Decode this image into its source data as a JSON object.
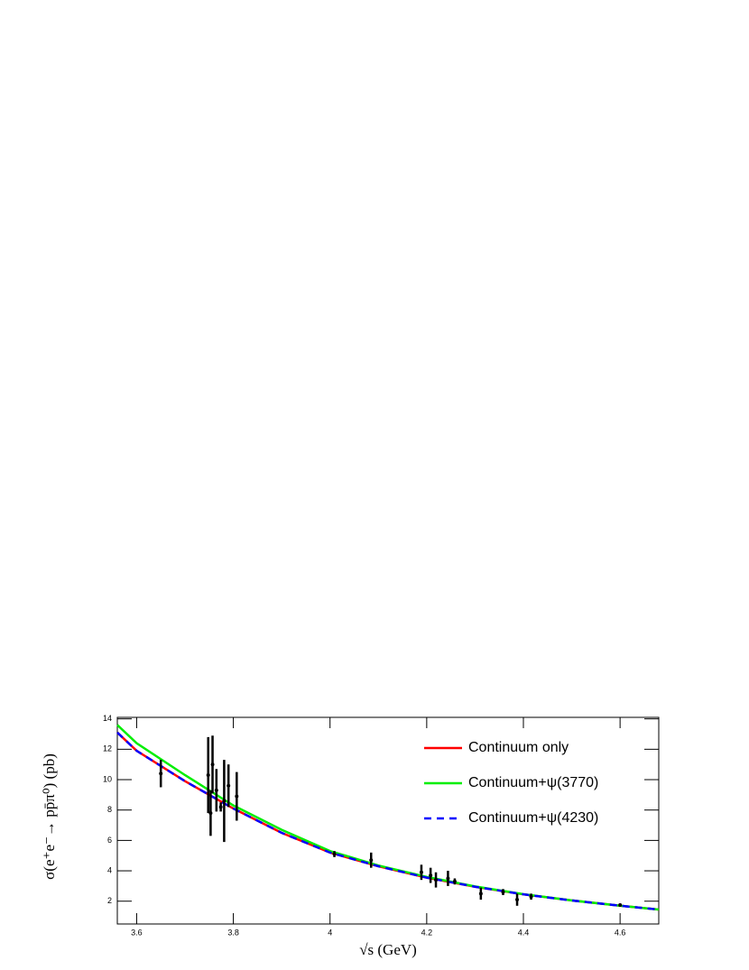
{
  "chart_data": {
    "type": "line",
    "xlabel": "√s (GeV)",
    "ylabel": "σ(e⁺e⁻→ pp̄π⁰) (pb)",
    "xlim": [
      3.56,
      4.68
    ],
    "ylim": [
      0.5,
      14.1
    ],
    "xticks": [
      3.6,
      3.8,
      4,
      4.2,
      4.4,
      4.6
    ],
    "yticks": [
      2,
      4,
      6,
      8,
      10,
      12,
      14
    ],
    "legend": "upper right",
    "series": [
      {
        "name": "Continuum only",
        "color": "#ff0000",
        "dashed": false,
        "x": [
          3.56,
          3.6,
          3.7,
          3.8,
          3.9,
          4.0,
          4.1,
          4.2,
          4.3,
          4.4,
          4.5,
          4.6,
          4.68
        ],
        "values": [
          13.1,
          11.9,
          9.9,
          8.1,
          6.5,
          5.2,
          4.3,
          3.55,
          2.95,
          2.45,
          2.05,
          1.7,
          1.45
        ]
      },
      {
        "name": "Continuum+ψ(3770)",
        "color": "#00ee00",
        "dashed": false,
        "x": [
          3.56,
          3.6,
          3.7,
          3.8,
          3.9,
          4.0,
          4.1,
          4.2,
          4.3,
          4.4,
          4.5,
          4.6,
          4.68
        ],
        "values": [
          13.6,
          12.4,
          10.3,
          8.3,
          6.7,
          5.3,
          4.35,
          3.6,
          2.97,
          2.46,
          2.05,
          1.7,
          1.45
        ]
      },
      {
        "name": "Continuum+ψ(4230)",
        "color": "#0000ff",
        "dashed": true,
        "x": [
          3.56,
          3.6,
          3.7,
          3.8,
          3.9,
          4.0,
          4.1,
          4.2,
          4.3,
          4.4,
          4.5,
          4.6,
          4.68
        ],
        "values": [
          13.1,
          11.9,
          9.9,
          8.1,
          6.5,
          5.2,
          4.3,
          3.55,
          2.95,
          2.45,
          2.05,
          1.7,
          1.45
        ]
      }
    ],
    "points": {
      "color": "#000000",
      "x": [
        3.65,
        3.748,
        3.753,
        3.757,
        3.765,
        3.774,
        3.781,
        3.79,
        3.807,
        4.009,
        4.085,
        4.189,
        4.208,
        4.219,
        4.244,
        4.258,
        4.312,
        4.358,
        4.387,
        4.416,
        4.6
      ],
      "values": [
        10.4,
        10.3,
        7.8,
        11.0,
        9.3,
        8.2,
        8.6,
        9.6,
        8.9,
        5.1,
        4.7,
        3.9,
        3.7,
        3.4,
        3.5,
        3.3,
        2.5,
        2.6,
        2.1,
        2.3,
        1.75
      ],
      "errors": [
        0.9,
        2.5,
        1.5,
        1.9,
        1.4,
        0.3,
        2.7,
        1.4,
        1.6,
        0.2,
        0.5,
        0.5,
        0.5,
        0.5,
        0.5,
        0.2,
        0.4,
        0.2,
        0.4,
        0.2,
        0.1
      ]
    }
  }
}
